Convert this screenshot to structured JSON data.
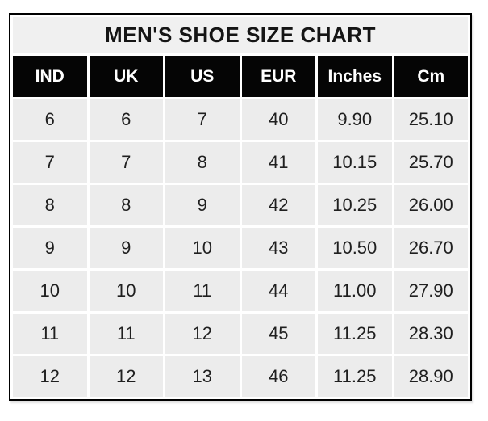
{
  "chart_data": {
    "type": "table",
    "title": "MEN'S SHOE SIZE CHART",
    "columns": [
      "IND",
      "UK",
      "US",
      "EUR",
      "Inches",
      "Cm"
    ],
    "rows": [
      [
        "6",
        "6",
        "7",
        "40",
        "9.90",
        "25.10"
      ],
      [
        "7",
        "7",
        "8",
        "41",
        "10.15",
        "25.70"
      ],
      [
        "8",
        "8",
        "9",
        "42",
        "10.25",
        "26.00"
      ],
      [
        "9",
        "9",
        "10",
        "43",
        "10.50",
        "26.70"
      ],
      [
        "10",
        "10",
        "11",
        "44",
        "11.00",
        "27.90"
      ],
      [
        "11",
        "11",
        "12",
        "45",
        "11.25",
        "28.30"
      ],
      [
        "12",
        "12",
        "13",
        "46",
        "11.25",
        "28.90"
      ]
    ],
    "colors": {
      "title_bg": "#f0f0f0",
      "header_bg": "#050505",
      "header_text": "#ffffff",
      "cell_bg": "#ececec",
      "text": "#1f1f1f",
      "border": "#000000",
      "gridline_gap": "#ffffff"
    }
  }
}
